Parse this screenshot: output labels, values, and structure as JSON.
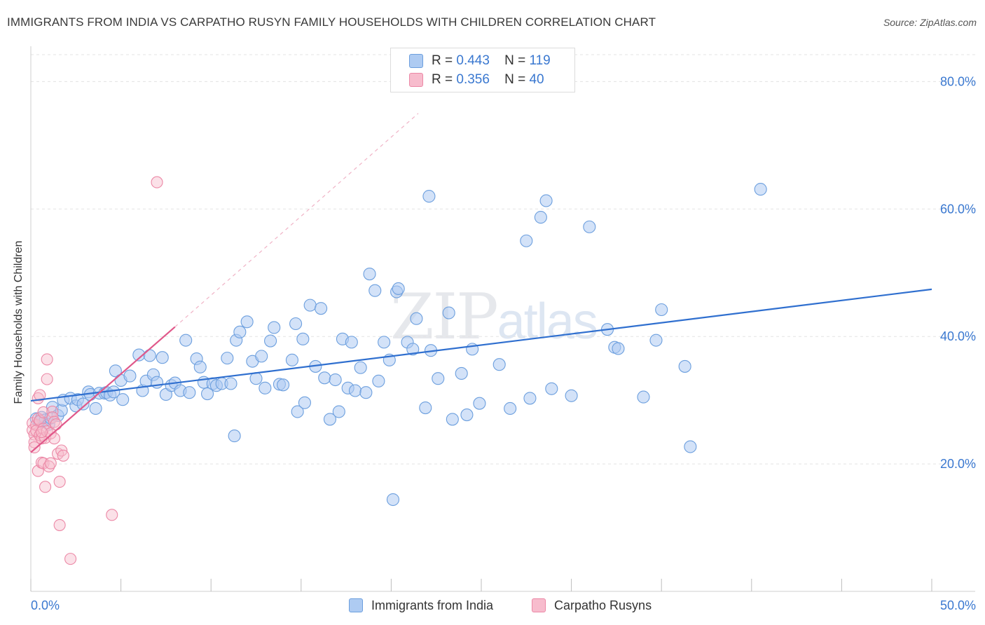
{
  "title": "IMMIGRANTS FROM INDIA VS CARPATHO RUSYN FAMILY HOUSEHOLDS WITH CHILDREN CORRELATION CHART",
  "source": "Source: ZipAtlas.com",
  "watermark": {
    "zip": "ZIP",
    "atlas": "atlas"
  },
  "legend": {
    "rows": [
      {
        "r_label": "R =",
        "r_value": "0.443",
        "n_label": "N =",
        "n_value": "119"
      },
      {
        "r_label": "R =",
        "r_value": "0.356",
        "n_label": "N =",
        "n_value": "40"
      }
    ]
  },
  "bottom_legend": [
    "Immigrants from India",
    "Carpatho Rusyns"
  ],
  "colors": {
    "india_fill": "#aecbf2",
    "india_stroke": "#6c9fde",
    "india_line": "#2f6fcf",
    "rusyn_fill": "#f7bccd",
    "rusyn_stroke": "#ec88a6",
    "rusyn_line": "#e0588a",
    "axis_label": "#3a78d0",
    "grid": "#e3e3e3"
  },
  "chart_data": {
    "type": "scatter",
    "title": "IMMIGRANTS FROM INDIA VS CARPATHO RUSYN FAMILY HOUSEHOLDS WITH CHILDREN CORRELATION CHART",
    "xlabel": "",
    "ylabel": "Family Households with Children",
    "xlim": [
      0,
      50
    ],
    "ylim": [
      0,
      84
    ],
    "x_tick_labels": [
      "0.0%",
      "50.0%"
    ],
    "y_ticks": [
      20,
      40,
      60,
      80
    ],
    "y_tick_labels": [
      "20.0%",
      "40.0%",
      "60.0%",
      "80.0%"
    ],
    "grid": true,
    "legend_position": "top-center",
    "series": [
      {
        "name": "Immigrants from India",
        "R": 0.443,
        "N": 119,
        "trend": {
          "x": [
            0,
            50
          ],
          "y": [
            29.9,
            47.4
          ]
        },
        "points": [
          [
            0.3,
            27.1
          ],
          [
            0.5,
            26.6
          ],
          [
            0.6,
            27.3
          ],
          [
            0.8,
            26.9
          ],
          [
            1.0,
            26.2
          ],
          [
            1.1,
            27.2
          ],
          [
            1.2,
            28.9
          ],
          [
            1.5,
            27.6
          ],
          [
            1.7,
            28.4
          ],
          [
            1.8,
            30.0
          ],
          [
            2.2,
            30.3
          ],
          [
            2.5,
            29.1
          ],
          [
            2.6,
            30.1
          ],
          [
            2.9,
            29.4
          ],
          [
            3.2,
            31.3
          ],
          [
            3.3,
            30.9
          ],
          [
            3.6,
            28.7
          ],
          [
            3.8,
            31.1
          ],
          [
            4.1,
            31.1
          ],
          [
            4.2,
            31.2
          ],
          [
            4.4,
            30.8
          ],
          [
            4.6,
            31.3
          ],
          [
            4.7,
            34.6
          ],
          [
            5.0,
            33.1
          ],
          [
            5.1,
            30.1
          ],
          [
            5.5,
            33.8
          ],
          [
            6.0,
            37.1
          ],
          [
            6.2,
            31.5
          ],
          [
            6.4,
            33.0
          ],
          [
            6.6,
            37.0
          ],
          [
            6.8,
            34.0
          ],
          [
            7.0,
            32.8
          ],
          [
            7.3,
            36.7
          ],
          [
            7.5,
            30.9
          ],
          [
            7.8,
            32.3
          ],
          [
            8.0,
            32.7
          ],
          [
            8.3,
            31.5
          ],
          [
            8.6,
            39.4
          ],
          [
            8.8,
            31.2
          ],
          [
            9.2,
            36.5
          ],
          [
            9.4,
            35.2
          ],
          [
            9.6,
            32.8
          ],
          [
            9.8,
            31.0
          ],
          [
            10.1,
            32.6
          ],
          [
            10.3,
            32.3
          ],
          [
            10.6,
            32.6
          ],
          [
            10.9,
            36.6
          ],
          [
            11.1,
            32.6
          ],
          [
            11.4,
            39.4
          ],
          [
            11.6,
            40.7
          ],
          [
            11.3,
            24.4
          ],
          [
            12.0,
            42.3
          ],
          [
            12.3,
            36.1
          ],
          [
            12.5,
            33.4
          ],
          [
            12.8,
            36.9
          ],
          [
            13.0,
            31.9
          ],
          [
            13.3,
            39.3
          ],
          [
            13.5,
            41.4
          ],
          [
            13.8,
            32.5
          ],
          [
            14.0,
            32.4
          ],
          [
            14.5,
            36.3
          ],
          [
            14.7,
            42.0
          ],
          [
            14.8,
            28.2
          ],
          [
            15.1,
            39.6
          ],
          [
            15.2,
            29.6
          ],
          [
            15.5,
            44.9
          ],
          [
            15.8,
            35.3
          ],
          [
            16.1,
            44.4
          ],
          [
            16.3,
            33.5
          ],
          [
            16.6,
            27.0
          ],
          [
            16.9,
            33.2
          ],
          [
            17.1,
            28.2
          ],
          [
            17.3,
            39.6
          ],
          [
            17.6,
            31.9
          ],
          [
            17.8,
            39.1
          ],
          [
            18.0,
            31.5
          ],
          [
            18.3,
            35.1
          ],
          [
            18.6,
            31.2
          ],
          [
            18.8,
            49.8
          ],
          [
            19.1,
            47.2
          ],
          [
            19.3,
            33.0
          ],
          [
            19.6,
            39.1
          ],
          [
            19.9,
            36.3
          ],
          [
            20.1,
            14.4
          ],
          [
            20.3,
            47.0
          ],
          [
            20.4,
            47.5
          ],
          [
            20.9,
            39.1
          ],
          [
            21.2,
            38.0
          ],
          [
            21.4,
            42.8
          ],
          [
            21.9,
            28.8
          ],
          [
            22.1,
            62.0
          ],
          [
            22.2,
            37.8
          ],
          [
            22.6,
            33.4
          ],
          [
            23.2,
            43.7
          ],
          [
            23.4,
            27.0
          ],
          [
            23.9,
            34.2
          ],
          [
            24.2,
            27.7
          ],
          [
            24.5,
            38.0
          ],
          [
            24.9,
            29.5
          ],
          [
            26.0,
            35.6
          ],
          [
            26.6,
            28.7
          ],
          [
            27.5,
            55.0
          ],
          [
            27.7,
            30.3
          ],
          [
            28.3,
            58.7
          ],
          [
            28.6,
            61.3
          ],
          [
            28.9,
            31.8
          ],
          [
            30.0,
            30.7
          ],
          [
            31.0,
            57.2
          ],
          [
            32.0,
            41.1
          ],
          [
            32.4,
            38.3
          ],
          [
            32.6,
            38.1
          ],
          [
            34.0,
            30.5
          ],
          [
            34.7,
            39.4
          ],
          [
            35.0,
            44.2
          ],
          [
            36.3,
            35.3
          ],
          [
            36.6,
            22.7
          ],
          [
            40.5,
            63.1
          ]
        ]
      },
      {
        "name": "Carpatho Rusyns",
        "R": 0.356,
        "N": 40,
        "trend": {
          "x": [
            0,
            8
          ],
          "y": [
            21.8,
            41.5
          ]
        },
        "trend_extension": {
          "x": [
            8,
            21.5
          ],
          "y": [
            41.5,
            75.0
          ]
        },
        "points": [
          [
            0.1,
            26.4
          ],
          [
            0.1,
            25.3
          ],
          [
            0.2,
            24.6
          ],
          [
            0.2,
            23.4
          ],
          [
            0.2,
            22.6
          ],
          [
            0.3,
            26.1
          ],
          [
            0.3,
            25.2
          ],
          [
            0.4,
            27.1
          ],
          [
            0.4,
            30.3
          ],
          [
            0.4,
            18.9
          ],
          [
            0.5,
            24.5
          ],
          [
            0.5,
            30.8
          ],
          [
            0.5,
            26.8
          ],
          [
            0.6,
            24.0
          ],
          [
            0.6,
            20.2
          ],
          [
            0.7,
            25.5
          ],
          [
            0.7,
            28.1
          ],
          [
            0.7,
            20.1
          ],
          [
            0.8,
            16.4
          ],
          [
            0.8,
            24.1
          ],
          [
            0.9,
            25.1
          ],
          [
            0.9,
            33.3
          ],
          [
            0.9,
            36.4
          ],
          [
            1.0,
            19.6
          ],
          [
            1.1,
            24.8
          ],
          [
            1.1,
            20.1
          ],
          [
            1.2,
            28.2
          ],
          [
            1.2,
            27.3
          ],
          [
            1.3,
            26.6
          ],
          [
            1.3,
            24.0
          ],
          [
            1.4,
            26.2
          ],
          [
            1.5,
            21.6
          ],
          [
            1.6,
            17.2
          ],
          [
            1.6,
            10.4
          ],
          [
            1.7,
            22.1
          ],
          [
            1.8,
            21.3
          ],
          [
            2.2,
            5.1
          ],
          [
            4.5,
            12.0
          ],
          [
            7.0,
            64.2
          ],
          [
            0.6,
            25.0
          ]
        ]
      }
    ]
  }
}
